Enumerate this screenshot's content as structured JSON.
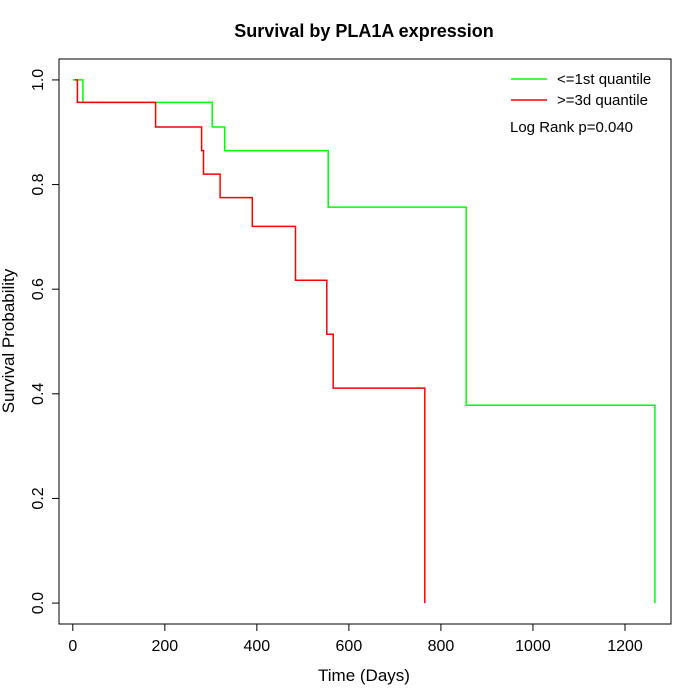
{
  "chart_data": {
    "type": "line",
    "title": "Survival by PLA1A expression",
    "xlabel": "Time (Days)",
    "ylabel": "Survival Probability",
    "xlim": [
      -30,
      1300
    ],
    "ylim": [
      -0.04,
      1.04
    ],
    "xticks": [
      0,
      200,
      400,
      600,
      800,
      1000,
      1200
    ],
    "yticks": [
      0.0,
      0.2,
      0.4,
      0.6,
      0.8,
      1.0
    ],
    "xtick_labels": [
      "0",
      "200",
      "400",
      "600",
      "800",
      "1000",
      "1200"
    ],
    "ytick_labels": [
      "0.0",
      "0.2",
      "0.4",
      "0.6",
      "0.8",
      "1.0"
    ],
    "grid": false,
    "legend_position": "top-right",
    "annotation": "Log Rank p=0.040",
    "series": [
      {
        "name": "<=1st quantile",
        "color": "#00ff00",
        "step": true,
        "x": [
          0,
          22,
          22,
          303,
          303,
          330,
          330,
          555,
          555,
          855,
          855,
          1265,
          1265
        ],
        "y": [
          1.0,
          1.0,
          0.957,
          0.957,
          0.91,
          0.91,
          0.865,
          0.865,
          0.757,
          0.757,
          0.378,
          0.378,
          0.0
        ]
      },
      {
        "name": ">=3d quantile",
        "color": "#ff0000",
        "step": true,
        "x": [
          5,
          10,
          10,
          180,
          180,
          280,
          280,
          284,
          284,
          320,
          320,
          390,
          390,
          484,
          484,
          552,
          552,
          566,
          566,
          765,
          765
        ],
        "y": [
          1.0,
          1.0,
          0.957,
          0.957,
          0.91,
          0.91,
          0.865,
          0.865,
          0.82,
          0.82,
          0.775,
          0.775,
          0.72,
          0.72,
          0.617,
          0.617,
          0.514,
          0.514,
          0.411,
          0.411,
          0.0
        ]
      }
    ]
  }
}
